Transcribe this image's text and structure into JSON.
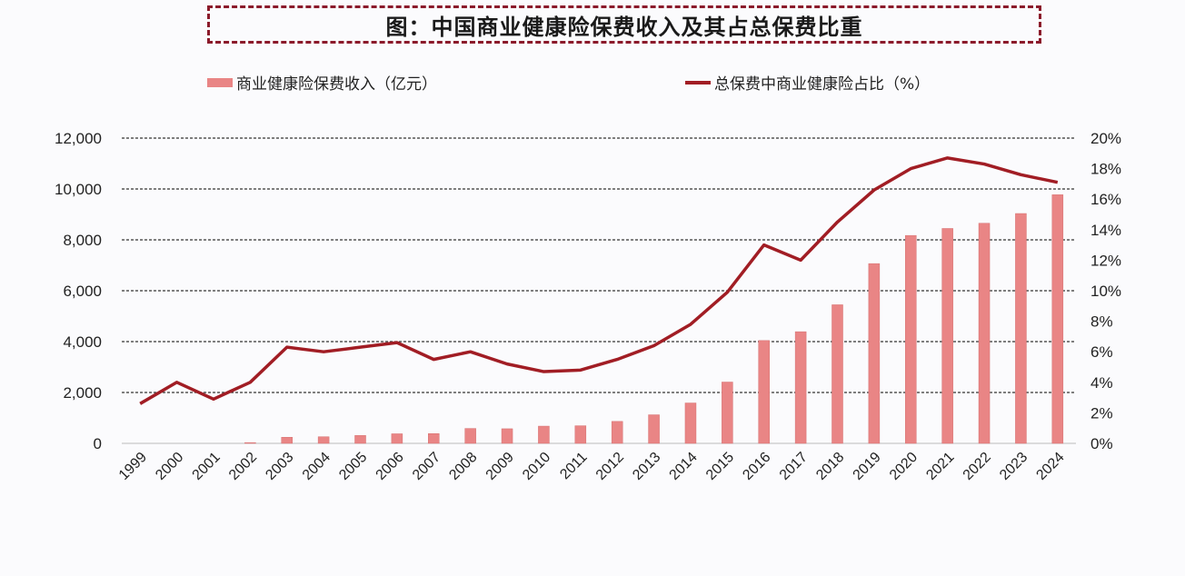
{
  "title": "图：中国商业健康险保费收入及其占总保费比重",
  "legend": {
    "bar_label": "商业健康险保费收入（亿元）",
    "line_label": "总保费中商业健康险占比（%）"
  },
  "colors": {
    "bar": "#e98585",
    "line": "#a11d24",
    "title_border": "#8b1a2b"
  },
  "chart_data": {
    "type": "bar+line",
    "title": "图：中国商业健康险保费收入及其占总保费比重",
    "categories": [
      "1999",
      "2000",
      "2001",
      "2002",
      "2003",
      "2004",
      "2005",
      "2006",
      "2007",
      "2008",
      "2009",
      "2010",
      "2011",
      "2012",
      "2013",
      "2014",
      "2015",
      "2016",
      "2017",
      "2018",
      "2019",
      "2020",
      "2021",
      "2022",
      "2023",
      "2024"
    ],
    "series": [
      {
        "name": "商业健康险保费收入（亿元）",
        "type": "bar",
        "axis": "left",
        "values": [
          0,
          0,
          0,
          30,
          240,
          260,
          310,
          376,
          384,
          585,
          574,
          677,
          692,
          863,
          1123,
          1587,
          2410,
          4042,
          4389,
          5448,
          7066,
          8173,
          8447,
          8653,
          9035,
          9773
        ]
      },
      {
        "name": "总保费中商业健康险占比（%）",
        "type": "line",
        "axis": "right",
        "values": [
          2.6,
          4.0,
          2.9,
          4.0,
          6.3,
          6.0,
          6.3,
          6.6,
          5.5,
          6.0,
          5.2,
          4.7,
          4.8,
          5.5,
          6.4,
          7.8,
          9.9,
          13.0,
          12.0,
          14.5,
          16.6,
          18.0,
          18.7,
          18.3,
          17.6,
          17.1
        ]
      }
    ],
    "left_axis": {
      "ylim": [
        0,
        12000
      ],
      "ticks": [
        "0",
        "2,000",
        "4,000",
        "6,000",
        "8,000",
        "10,000",
        "12,000"
      ]
    },
    "right_axis": {
      "ylim": [
        0,
        20
      ],
      "ticks": [
        "0%",
        "2%",
        "4%",
        "6%",
        "8%",
        "10%",
        "12%",
        "14%",
        "16%",
        "18%",
        "20%"
      ]
    },
    "grid": "dashed horizontal at left-axis ticks",
    "legend_position": "top"
  }
}
